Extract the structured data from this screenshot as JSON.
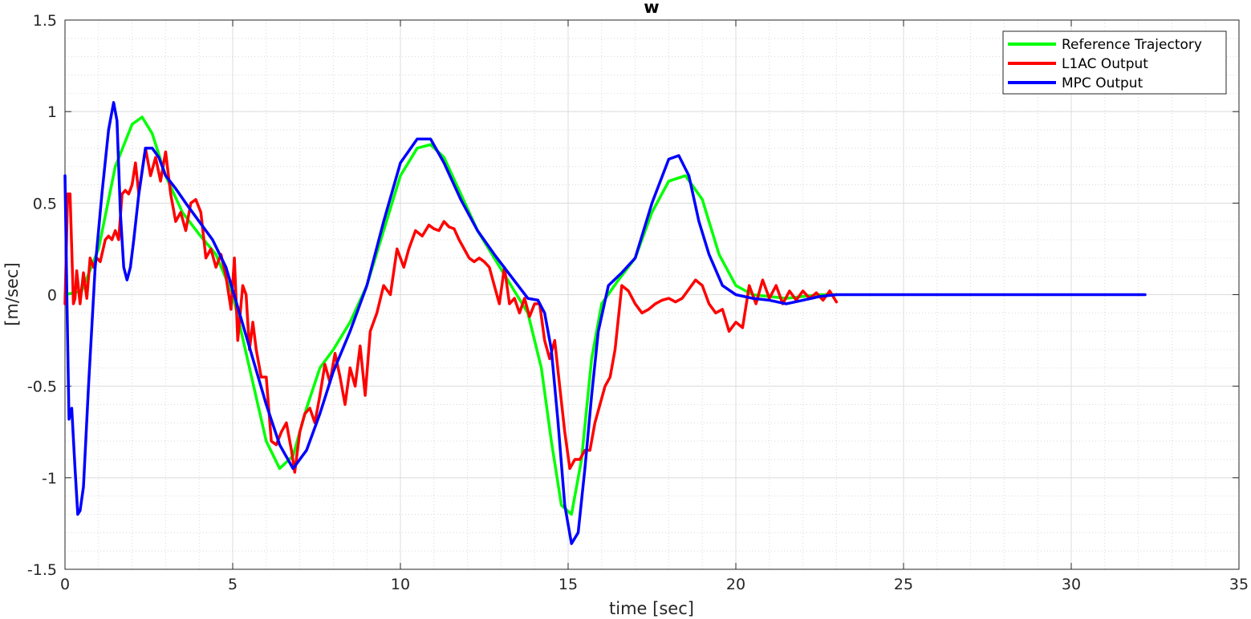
{
  "chart_data": {
    "type": "line",
    "title": "w",
    "xlabel": "time [sec]",
    "ylabel": "[m/sec]",
    "xlim": [
      0,
      35
    ],
    "ylim": [
      -1.5,
      1.5
    ],
    "xticks": [
      0,
      5,
      10,
      15,
      20,
      25,
      30,
      35
    ],
    "yticks": [
      -1.5,
      -1,
      -0.5,
      0,
      0.5,
      1,
      1.5
    ],
    "xtick_labels": [
      "0",
      "5",
      "10",
      "15",
      "20",
      "25",
      "30",
      "35"
    ],
    "ytick_labels": [
      "-1.5",
      "-1",
      "-0.5",
      "0",
      "0.5",
      "1",
      "1.5"
    ],
    "grid": true,
    "minor_grid": true,
    "legend_position": "top-right",
    "series": [
      {
        "name": "Reference Trajectory",
        "color": "#00ff00",
        "x": [
          0,
          0.5,
          1.0,
          1.5,
          2.0,
          2.3,
          2.6,
          3.0,
          3.5,
          4.0,
          4.5,
          5.0,
          5.5,
          6.0,
          6.4,
          6.8,
          7.2,
          7.6,
          8.0,
          8.5,
          9.0,
          9.5,
          10.0,
          10.5,
          10.9,
          11.3,
          11.8,
          12.3,
          12.8,
          13.3,
          13.8,
          14.2,
          14.5,
          14.8,
          15.1,
          15.4,
          15.7,
          16.0,
          16.5,
          17.0,
          17.5,
          18.0,
          18.5,
          19.0,
          19.5,
          20.0,
          20.5,
          21.0,
          21.5,
          22.0,
          22.5,
          23.0
        ],
        "y": [
          0,
          0.02,
          0.25,
          0.7,
          0.93,
          0.97,
          0.88,
          0.65,
          0.45,
          0.33,
          0.22,
          0.0,
          -0.4,
          -0.8,
          -0.95,
          -0.88,
          -0.62,
          -0.4,
          -0.3,
          -0.15,
          0.05,
          0.35,
          0.65,
          0.8,
          0.82,
          0.75,
          0.55,
          0.35,
          0.2,
          0.05,
          -0.1,
          -0.4,
          -0.8,
          -1.15,
          -1.2,
          -0.9,
          -0.35,
          -0.05,
          0.08,
          0.2,
          0.45,
          0.62,
          0.65,
          0.52,
          0.22,
          0.05,
          0.0,
          -0.01,
          -0.02,
          -0.01,
          0.0,
          0.0
        ]
      },
      {
        "name": "L1AC Output",
        "color": "#ff0000",
        "x": [
          0,
          0.08,
          0.15,
          0.25,
          0.3,
          0.35,
          0.45,
          0.55,
          0.65,
          0.75,
          0.85,
          0.95,
          1.05,
          1.2,
          1.3,
          1.4,
          1.5,
          1.6,
          1.7,
          1.8,
          1.9,
          2.0,
          2.1,
          2.2,
          2.4,
          2.55,
          2.7,
          2.85,
          3.0,
          3.15,
          3.3,
          3.45,
          3.6,
          3.75,
          3.9,
          4.05,
          4.2,
          4.35,
          4.5,
          4.65,
          4.8,
          4.95,
          5.05,
          5.15,
          5.3,
          5.4,
          5.5,
          5.6,
          5.7,
          5.85,
          6.0,
          6.15,
          6.3,
          6.45,
          6.6,
          6.75,
          6.85,
          7.0,
          7.15,
          7.3,
          7.45,
          7.6,
          7.75,
          7.9,
          8.05,
          8.2,
          8.35,
          8.5,
          8.65,
          8.8,
          8.95,
          9.1,
          9.3,
          9.5,
          9.7,
          9.9,
          10.1,
          10.25,
          10.45,
          10.65,
          10.85,
          11.0,
          11.15,
          11.3,
          11.45,
          11.6,
          11.75,
          11.9,
          12.05,
          12.2,
          12.35,
          12.5,
          12.65,
          12.8,
          12.95,
          13.1,
          13.25,
          13.4,
          13.55,
          13.7,
          13.85,
          14.0,
          14.15,
          14.3,
          14.45,
          14.6,
          14.75,
          14.9,
          15.05,
          15.2,
          15.35,
          15.5,
          15.65,
          15.8,
          15.95,
          16.1,
          16.25,
          16.4,
          16.6,
          16.8,
          17.0,
          17.2,
          17.4,
          17.6,
          17.8,
          18.0,
          18.2,
          18.4,
          18.6,
          18.8,
          19.0,
          19.2,
          19.4,
          19.6,
          19.8,
          20.0,
          20.2,
          20.4,
          20.6,
          20.8,
          21.0,
          21.2,
          21.4,
          21.6,
          21.8,
          22.0,
          22.2,
          22.4,
          22.6,
          22.8,
          23.0
        ],
        "y": [
          -0.05,
          0.55,
          0.55,
          -0.05,
          -0.02,
          0.13,
          -0.05,
          0.12,
          -0.02,
          0.2,
          0.15,
          0.2,
          0.18,
          0.3,
          0.32,
          0.3,
          0.35,
          0.3,
          0.55,
          0.57,
          0.55,
          0.6,
          0.72,
          0.55,
          0.8,
          0.65,
          0.75,
          0.62,
          0.78,
          0.55,
          0.4,
          0.45,
          0.35,
          0.5,
          0.52,
          0.45,
          0.2,
          0.25,
          0.15,
          0.22,
          0.1,
          -0.08,
          0.2,
          -0.25,
          0.05,
          0.0,
          -0.3,
          -0.15,
          -0.3,
          -0.45,
          -0.45,
          -0.8,
          -0.82,
          -0.75,
          -0.7,
          -0.85,
          -0.97,
          -0.75,
          -0.65,
          -0.62,
          -0.7,
          -0.55,
          -0.38,
          -0.48,
          -0.32,
          -0.45,
          -0.6,
          -0.4,
          -0.5,
          -0.28,
          -0.55,
          -0.2,
          -0.1,
          0.05,
          0.0,
          0.25,
          0.15,
          0.25,
          0.35,
          0.32,
          0.38,
          0.36,
          0.35,
          0.4,
          0.37,
          0.36,
          0.3,
          0.25,
          0.2,
          0.18,
          0.2,
          0.18,
          0.15,
          0.05,
          -0.05,
          0.15,
          -0.05,
          -0.02,
          -0.1,
          -0.02,
          -0.12,
          -0.05,
          -0.05,
          -0.25,
          -0.35,
          -0.25,
          -0.5,
          -0.75,
          -0.95,
          -0.9,
          -0.9,
          -0.85,
          -0.85,
          -0.7,
          -0.6,
          -0.5,
          -0.45,
          -0.3,
          0.05,
          0.02,
          -0.05,
          -0.1,
          -0.08,
          -0.05,
          -0.03,
          -0.02,
          -0.04,
          -0.02,
          0.03,
          0.08,
          0.05,
          -0.05,
          -0.1,
          -0.08,
          -0.2,
          -0.15,
          -0.18,
          0.05,
          -0.05,
          0.08,
          -0.02,
          0.05,
          -0.05,
          0.02,
          -0.03,
          0.02,
          -0.02,
          0.01,
          -0.03,
          0.02,
          -0.04
        ]
      },
      {
        "name": "MPC Output",
        "color": "#0000ff",
        "x": [
          0,
          0.06,
          0.12,
          0.2,
          0.3,
          0.38,
          0.45,
          0.55,
          0.7,
          0.9,
          1.1,
          1.3,
          1.45,
          1.55,
          1.65,
          1.75,
          1.85,
          1.95,
          2.05,
          2.2,
          2.4,
          2.6,
          2.8,
          3.0,
          3.3,
          3.6,
          4.0,
          4.4,
          4.8,
          5.2,
          5.6,
          6.0,
          6.4,
          6.8,
          7.2,
          7.6,
          8.0,
          8.5,
          9.0,
          9.5,
          10.0,
          10.5,
          10.9,
          11.3,
          11.8,
          12.3,
          12.8,
          13.3,
          13.8,
          14.1,
          14.3,
          14.5,
          14.7,
          14.9,
          15.1,
          15.3,
          15.5,
          15.7,
          15.9,
          16.2,
          16.6,
          17.0,
          17.5,
          18.0,
          18.3,
          18.6,
          18.9,
          19.2,
          19.6,
          20.0,
          20.5,
          21.0,
          21.5,
          22.0,
          22.5,
          23.0,
          24.0,
          26.0,
          28.0,
          30.0,
          32.2
        ],
        "y": [
          0.65,
          -0.05,
          -0.68,
          -0.62,
          -0.95,
          -1.2,
          -1.18,
          -1.05,
          -0.5,
          0.15,
          0.55,
          0.9,
          1.05,
          0.95,
          0.45,
          0.15,
          0.08,
          0.15,
          0.3,
          0.55,
          0.8,
          0.8,
          0.75,
          0.65,
          0.58,
          0.5,
          0.4,
          0.3,
          0.15,
          -0.1,
          -0.35,
          -0.6,
          -0.82,
          -0.95,
          -0.85,
          -0.65,
          -0.42,
          -0.2,
          0.05,
          0.4,
          0.72,
          0.85,
          0.85,
          0.72,
          0.52,
          0.35,
          0.22,
          0.1,
          -0.02,
          -0.03,
          -0.1,
          -0.3,
          -0.7,
          -1.15,
          -1.36,
          -1.3,
          -0.95,
          -0.55,
          -0.2,
          0.05,
          0.12,
          0.2,
          0.5,
          0.74,
          0.76,
          0.65,
          0.4,
          0.22,
          0.05,
          0.0,
          -0.02,
          -0.03,
          -0.05,
          -0.03,
          -0.01,
          0.0,
          0.0,
          0.0,
          0.0,
          0.0,
          0.0
        ]
      }
    ]
  }
}
